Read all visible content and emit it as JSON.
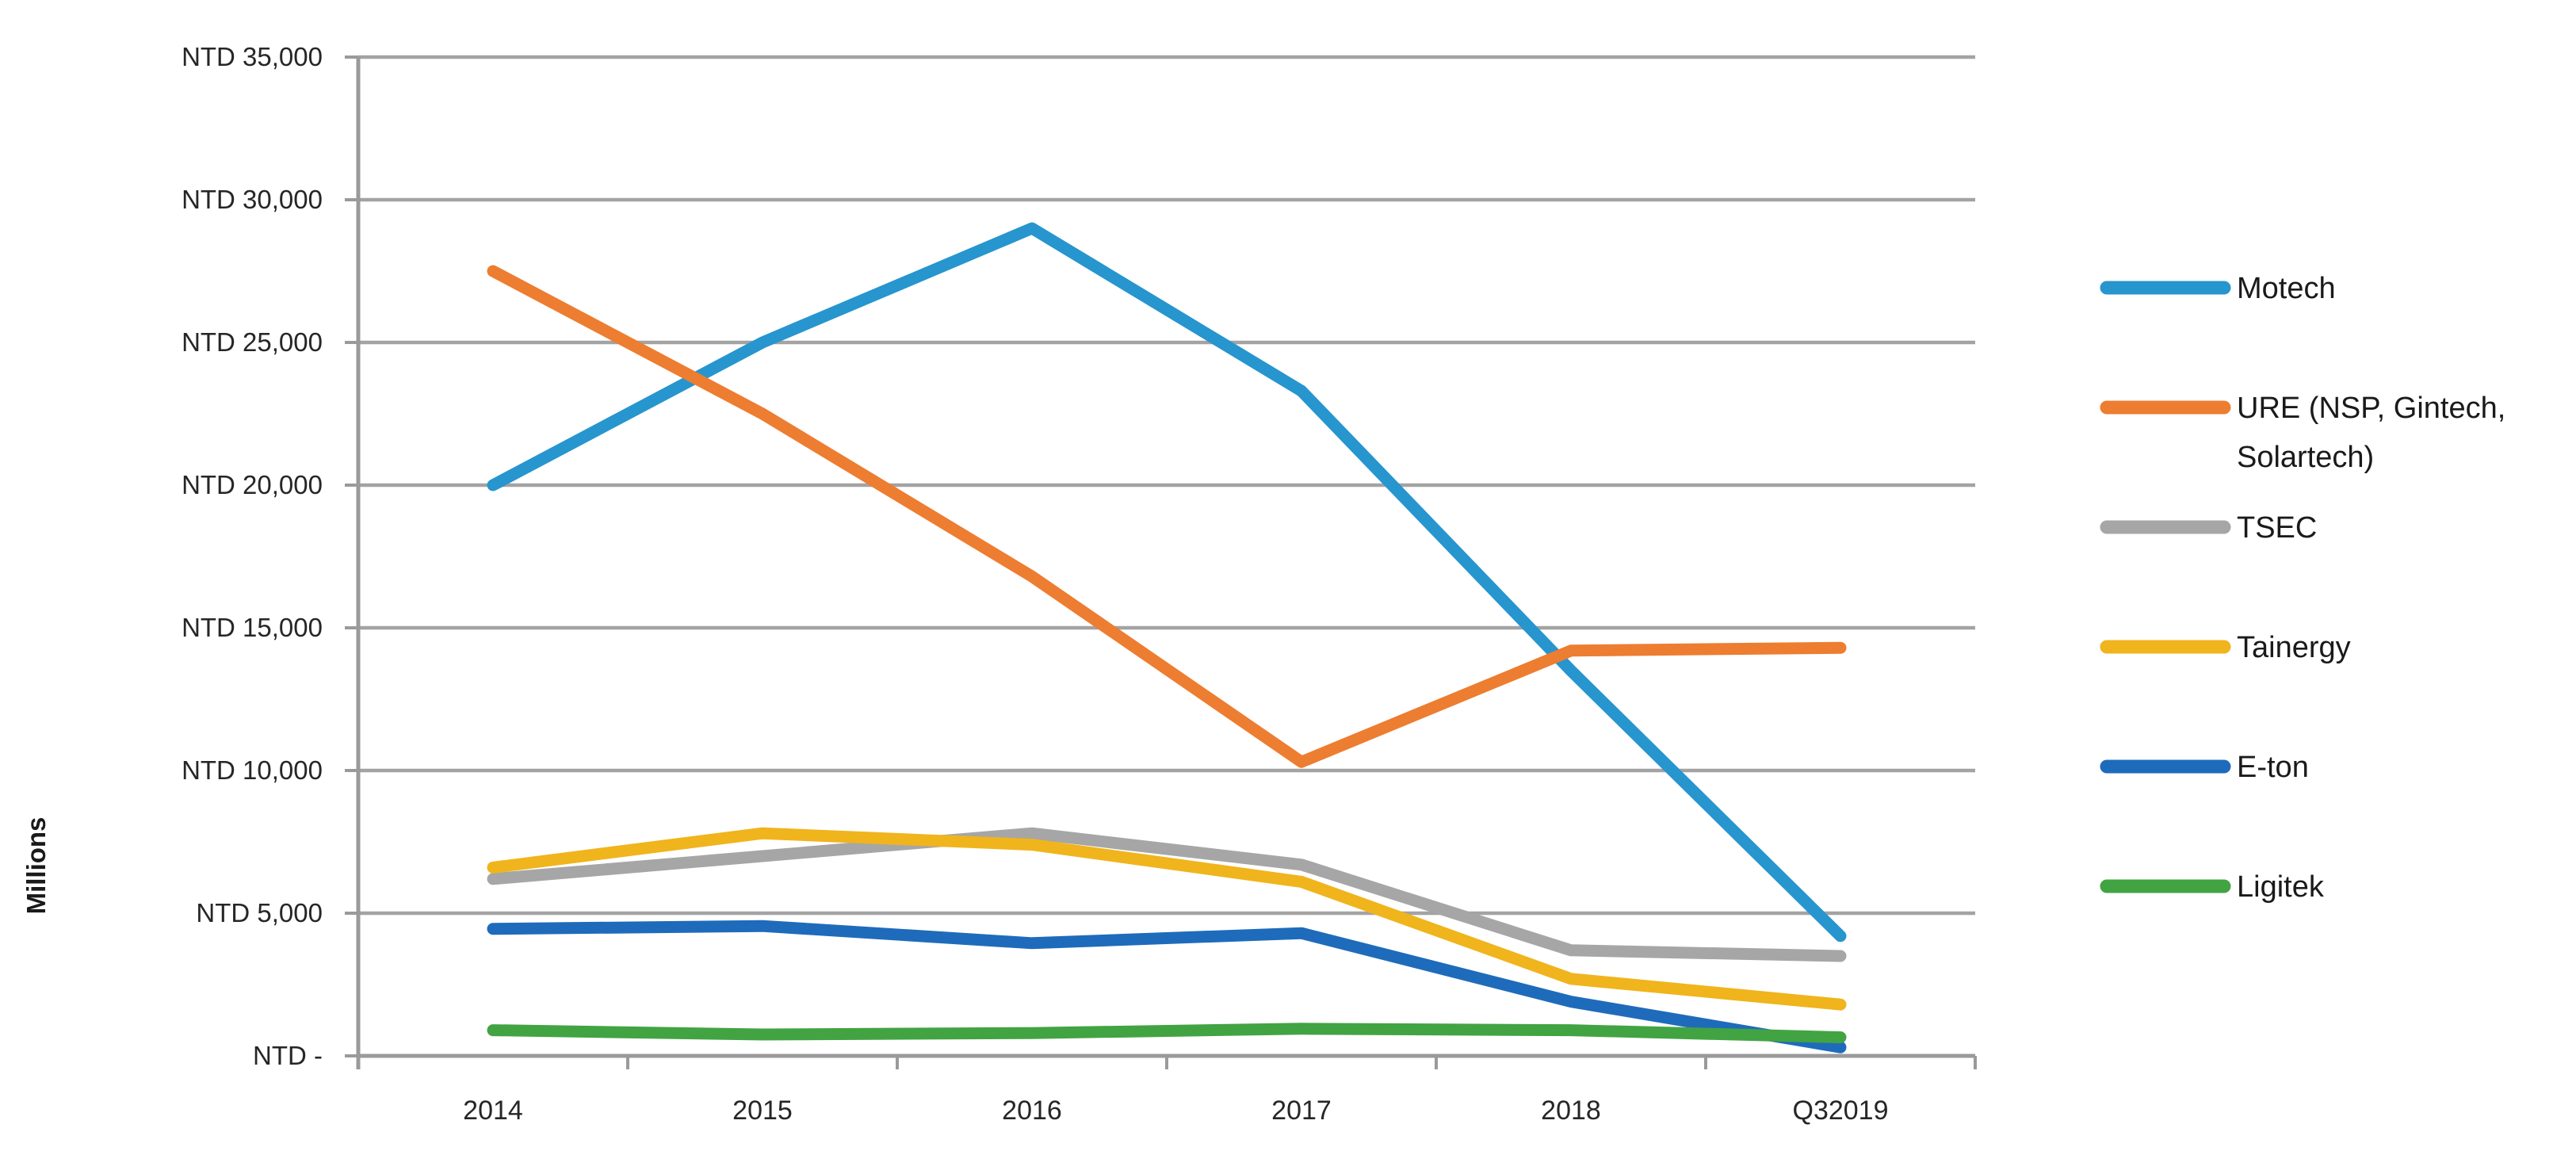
{
  "page": {
    "background": "#ffffff",
    "grid_color": "#A3A3A3",
    "axis_color": "#9A9A9A",
    "axis_label_color": "#262626",
    "legend_text_color": "#1A1A1A"
  },
  "chart_data": {
    "type": "line",
    "title": "",
    "xlabel": "",
    "ylabel": "Millions",
    "ylim": [
      0,
      35000
    ],
    "ytick_step": 5000,
    "ytick_labels": [
      "NTD -",
      "NTD 5,000",
      "NTD 10,000",
      "NTD 15,000",
      "NTD 20,000",
      "NTD 25,000",
      "NTD 30,000",
      "NTD 35,000"
    ],
    "grid": "horizontal",
    "legend_position": "right",
    "categories": [
      "2014",
      "2015",
      "2016",
      "2017",
      "2018",
      "Q32019"
    ],
    "series": [
      {
        "name": "Motech",
        "legend_label_lines": [
          "Motech"
        ],
        "color": "#2795CE",
        "values": [
          20000,
          25000,
          29000,
          23300,
          13500,
          4200
        ]
      },
      {
        "name": "URE (NSP, Gintech, Solartech)",
        "legend_label_lines": [
          "URE (NSP, Gintech,",
          "Solartech)"
        ],
        "color": "#ED7D31",
        "values": [
          27500,
          22500,
          16800,
          10300,
          14200,
          14300
        ]
      },
      {
        "name": "TSEC",
        "legend_label_lines": [
          "TSEC"
        ],
        "color": "#A6A6A6",
        "values": [
          6200,
          7000,
          7800,
          6700,
          3700,
          3500
        ]
      },
      {
        "name": "Tainergy",
        "legend_label_lines": [
          "Tainergy"
        ],
        "color": "#F0B41C",
        "values": [
          6600,
          7800,
          7400,
          6100,
          2700,
          1800
        ]
      },
      {
        "name": "E-ton",
        "legend_label_lines": [
          "E-ton"
        ],
        "color": "#1F6BBB",
        "values": [
          4450,
          4550,
          3950,
          4300,
          1900,
          300
        ]
      },
      {
        "name": "Ligitek",
        "legend_label_lines": [
          "Ligitek"
        ],
        "color": "#42A342",
        "values": [
          900,
          750,
          800,
          950,
          900,
          650
        ]
      }
    ]
  }
}
